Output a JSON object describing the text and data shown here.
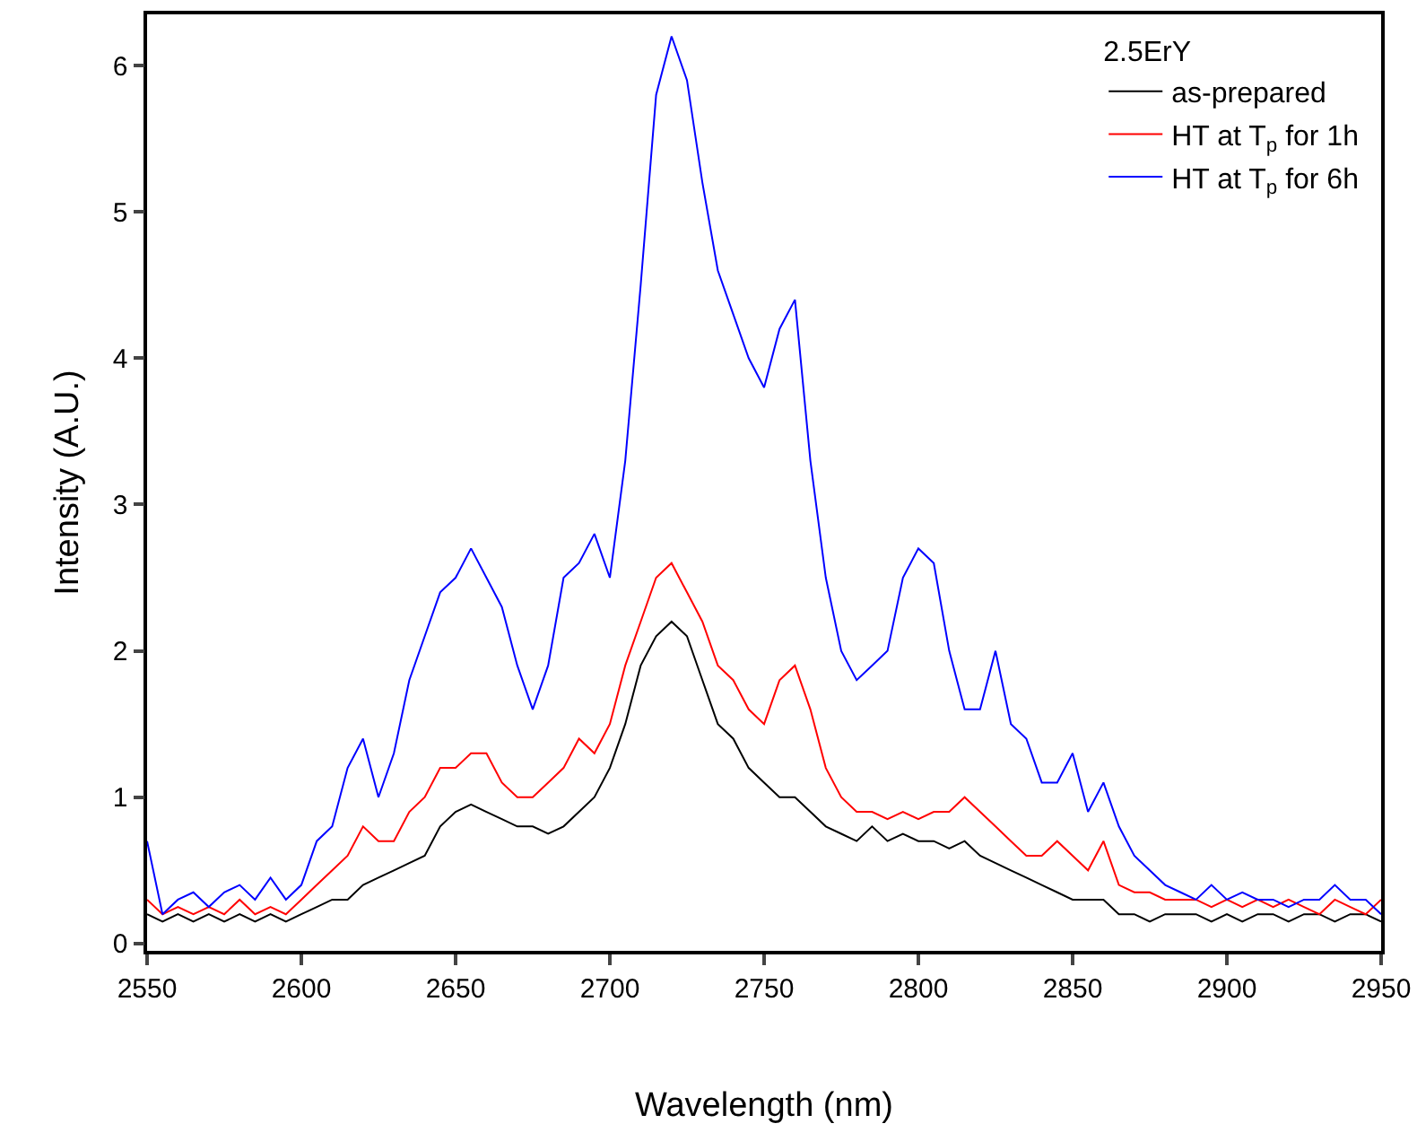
{
  "chart_data": {
    "type": "line",
    "xlabel": "Wavelength (nm)",
    "ylabel": "Intensity (A.U.)",
    "legend_title": "2.5ErY",
    "legend": "top right",
    "grid": false,
    "marker": "none",
    "line_style": "solid",
    "x": [
      2550,
      2555,
      2560,
      2565,
      2570,
      2575,
      2580,
      2585,
      2590,
      2595,
      2600,
      2605,
      2610,
      2615,
      2620,
      2625,
      2630,
      2635,
      2640,
      2645,
      2650,
      2655,
      2660,
      2665,
      2670,
      2675,
      2680,
      2685,
      2690,
      2695,
      2700,
      2705,
      2710,
      2715,
      2720,
      2725,
      2730,
      2735,
      2740,
      2745,
      2750,
      2755,
      2760,
      2765,
      2770,
      2775,
      2780,
      2785,
      2790,
      2795,
      2800,
      2805,
      2810,
      2815,
      2820,
      2825,
      2830,
      2835,
      2840,
      2845,
      2850,
      2855,
      2860,
      2865,
      2870,
      2875,
      2880,
      2885,
      2890,
      2895,
      2900,
      2905,
      2910,
      2915,
      2920,
      2925,
      2930,
      2935,
      2940,
      2945,
      2950
    ],
    "xlim": [
      2550,
      2950
    ],
    "xticks": [
      2550,
      2600,
      2650,
      2700,
      2750,
      2800,
      2850,
      2900,
      2950
    ],
    "ylim": [
      -0.05,
      6.35
    ],
    "yticks": [
      0,
      1,
      2,
      3,
      4,
      5,
      6
    ],
    "series": [
      {
        "name": "as-prepared",
        "color": "#000000",
        "values": [
          0.2,
          0.15,
          0.2,
          0.15,
          0.2,
          0.15,
          0.2,
          0.15,
          0.2,
          0.15,
          0.2,
          0.25,
          0.3,
          0.3,
          0.4,
          0.45,
          0.5,
          0.55,
          0.6,
          0.8,
          0.9,
          0.95,
          0.9,
          0.85,
          0.8,
          0.8,
          0.75,
          0.8,
          0.9,
          1.0,
          1.2,
          1.5,
          1.9,
          2.1,
          2.2,
          2.1,
          1.8,
          1.5,
          1.4,
          1.2,
          1.1,
          1.0,
          1.0,
          0.9,
          0.8,
          0.75,
          0.7,
          0.8,
          0.7,
          0.75,
          0.7,
          0.7,
          0.65,
          0.7,
          0.6,
          0.55,
          0.5,
          0.45,
          0.4,
          0.35,
          0.3,
          0.3,
          0.3,
          0.2,
          0.2,
          0.15,
          0.2,
          0.2,
          0.2,
          0.15,
          0.2,
          0.15,
          0.2,
          0.2,
          0.15,
          0.2,
          0.2,
          0.15,
          0.2,
          0.2,
          0.15
        ]
      },
      {
        "name": "HT at T$_{p}$ for 1h",
        "color": "#ff0000",
        "values": [
          0.3,
          0.2,
          0.25,
          0.2,
          0.25,
          0.2,
          0.3,
          0.2,
          0.25,
          0.2,
          0.3,
          0.4,
          0.5,
          0.6,
          0.8,
          0.7,
          0.7,
          0.9,
          1.0,
          1.2,
          1.2,
          1.3,
          1.3,
          1.1,
          1.0,
          1.0,
          1.1,
          1.2,
          1.4,
          1.3,
          1.5,
          1.9,
          2.2,
          2.5,
          2.6,
          2.4,
          2.2,
          1.9,
          1.8,
          1.6,
          1.5,
          1.8,
          1.9,
          1.6,
          1.2,
          1.0,
          0.9,
          0.9,
          0.85,
          0.9,
          0.85,
          0.9,
          0.9,
          1.0,
          0.9,
          0.8,
          0.7,
          0.6,
          0.6,
          0.7,
          0.6,
          0.5,
          0.7,
          0.4,
          0.35,
          0.35,
          0.3,
          0.3,
          0.3,
          0.25,
          0.3,
          0.25,
          0.3,
          0.25,
          0.3,
          0.25,
          0.2,
          0.3,
          0.25,
          0.2,
          0.3
        ]
      },
      {
        "name": "HT at T$_{p}$ for 6h",
        "color": "#0000ff",
        "values": [
          0.7,
          0.2,
          0.3,
          0.35,
          0.25,
          0.35,
          0.4,
          0.3,
          0.45,
          0.3,
          0.4,
          0.7,
          0.8,
          1.2,
          1.4,
          1.0,
          1.3,
          1.8,
          2.1,
          2.4,
          2.5,
          2.7,
          2.5,
          2.3,
          1.9,
          1.6,
          1.9,
          2.5,
          2.6,
          2.8,
          2.5,
          3.3,
          4.5,
          5.8,
          6.2,
          5.9,
          5.2,
          4.6,
          4.3,
          4.0,
          3.8,
          4.2,
          4.4,
          3.3,
          2.5,
          2.0,
          1.8,
          1.9,
          2.0,
          2.5,
          2.7,
          2.6,
          2.0,
          1.6,
          1.6,
          2.0,
          1.5,
          1.4,
          1.1,
          1.1,
          1.3,
          0.9,
          1.1,
          0.8,
          0.6,
          0.5,
          0.4,
          0.35,
          0.3,
          0.4,
          0.3,
          0.35,
          0.3,
          0.3,
          0.25,
          0.3,
          0.3,
          0.4,
          0.3,
          0.3,
          0.2
        ]
      }
    ]
  }
}
